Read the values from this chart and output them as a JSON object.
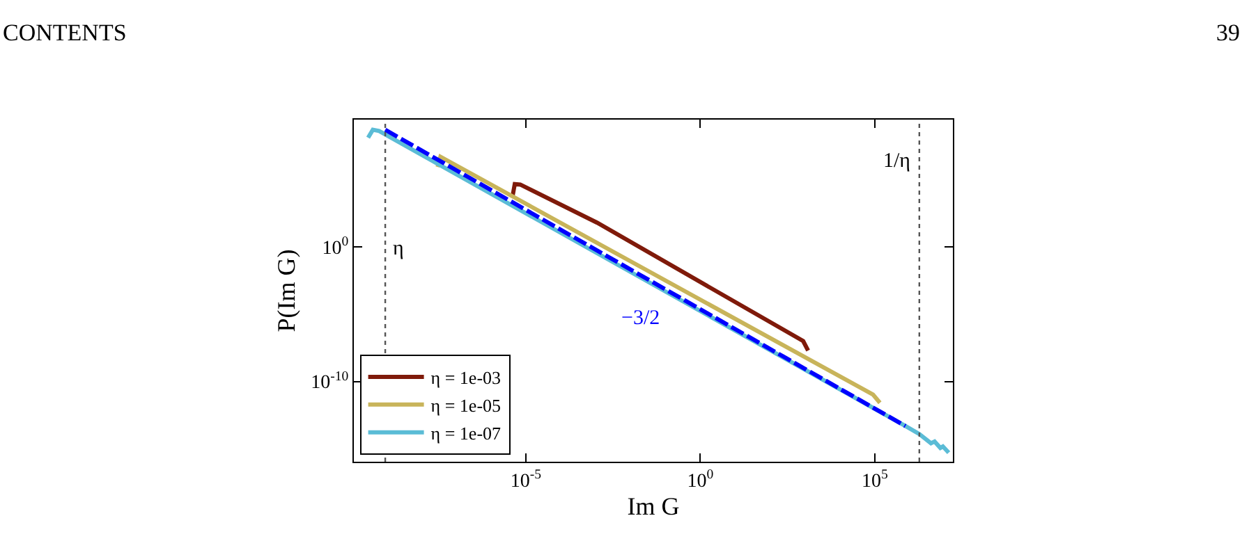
{
  "chart_data": {
    "type": "line",
    "xlabel": "Im G",
    "ylabel": "P(Im G)",
    "log": "xy",
    "legend": "bottom left",
    "line_style": "solid",
    "marker": "none",
    "xlim": [
      1.17e-10,
      17400000.0
    ],
    "ylim": [
      1.1e-16,
      2800000000.0
    ],
    "xticks": [
      {
        "value": 1e-05,
        "label": "10$^{-5}$"
      },
      {
        "value": 1,
        "label": "10$^{0}$"
      },
      {
        "value": 100000.0,
        "label": "10$^{5}$"
      }
    ],
    "yticks": [
      {
        "value": 1e-10,
        "label": "10$^{-10}$"
      },
      {
        "value": 1,
        "label": "10$^{0}$"
      }
    ],
    "series": [
      {
        "name": "η = 1e-03",
        "color": "#7f1a0a",
        "x": [
          4.1e-06,
          4.8e-06,
          6.9e-06,
          0.0011,
          890.0,
          1230.0
        ],
        "values": [
          4900.0,
          46000.0,
          42000.0,
          62,
          1e-07,
          2e-08
        ]
      },
      {
        "name": "η = 1e-05",
        "color": "#c8b45a",
        "x": [
          2.95e-08,
          3.55e-08,
          89000.0,
          141000.0
        ],
        "values": [
          850000.0,
          4900000.0,
          1.07e-11,
          2.6e-12
        ]
      },
      {
        "name": "η = 1e-07",
        "color": "#5bbcd6",
        "x": [
          3e-10,
          4.1e-10,
          6.2e-10,
          760000.0,
          1900000.0,
          4100000.0,
          5200000.0,
          7600000.0,
          9000000.0,
          13200000.0
        ],
        "values": [
          126000000.0,
          490000000.0,
          400000000.0,
          4.9e-14,
          1.26e-14,
          2.6e-15,
          3.5e-15,
          1.17e-15,
          1.5e-15,
          5.2e-16
        ]
      },
      {
        "color": "#0000ff",
        "line_style": "dashed",
        "x": [
          9.3e-10,
          760000.0
        ],
        "values": [
          490000000.0,
          4.9e-14
        ]
      }
    ],
    "ref_lines": [
      {
        "axis": "x",
        "value": 9.3e-10,
        "label": "η",
        "color": "#555555",
        "line_style": "dotted"
      },
      {
        "axis": "x",
        "value": 1900000.0,
        "label": "1/η",
        "color": "#555555",
        "line_style": "dotted"
      }
    ],
    "annotations": [
      "CONTENTS",
      "39",
      "−3/2"
    ]
  }
}
